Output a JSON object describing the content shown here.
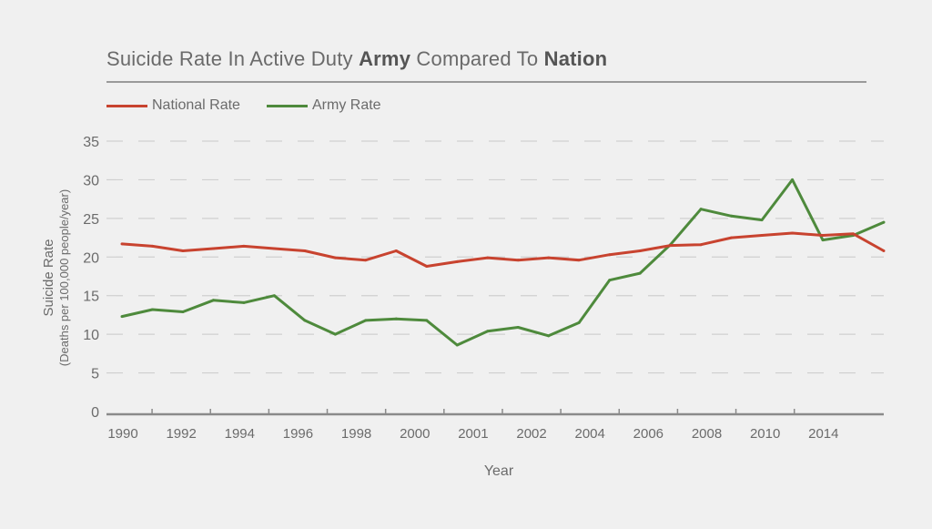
{
  "chart_data": {
    "type": "line",
    "title_parts": [
      {
        "text": "Suicide Rate In Active Duty ",
        "bold": false
      },
      {
        "text": "Army",
        "bold": true
      },
      {
        "text": " Compared To ",
        "bold": false
      },
      {
        "text": "Nation",
        "bold": true
      }
    ],
    "xlabel": "Year",
    "ylabel": "Suicide Rate",
    "ylabel_sub": "(Deaths per 100,000 people/year)",
    "ylim": [
      0,
      35
    ],
    "yticks": [
      0,
      5,
      10,
      15,
      20,
      25,
      30,
      35
    ],
    "xtick_labels": [
      "1990",
      "1992",
      "1994",
      "1996",
      "1998",
      "2000",
      "2001",
      "2002",
      "2004",
      "2006",
      "2008",
      "2010",
      "2014"
    ],
    "grid": "horizontal dashed",
    "legend_placement": "top-left",
    "series": [
      {
        "name": "National Rate",
        "color": "#c8432f",
        "values": [
          21.7,
          21.4,
          20.8,
          21.1,
          21.4,
          21.1,
          20.8,
          19.9,
          19.6,
          20.8,
          18.8,
          19.4,
          19.9,
          19.6,
          19.9,
          19.6,
          20.3,
          20.8,
          21.5,
          21.6,
          22.5,
          22.8,
          23.1,
          22.8,
          23.0,
          20.8
        ]
      },
      {
        "name": "Army Rate",
        "color": "#4e8a3c",
        "values": [
          12.3,
          13.2,
          12.9,
          14.4,
          14.1,
          15.0,
          11.8,
          10.0,
          11.8,
          12.0,
          11.8,
          8.6,
          10.4,
          10.9,
          9.8,
          11.5,
          17.0,
          17.9,
          21.6,
          26.2,
          25.3,
          24.8,
          30.0,
          22.2,
          22.8,
          24.5
        ]
      }
    ]
  }
}
